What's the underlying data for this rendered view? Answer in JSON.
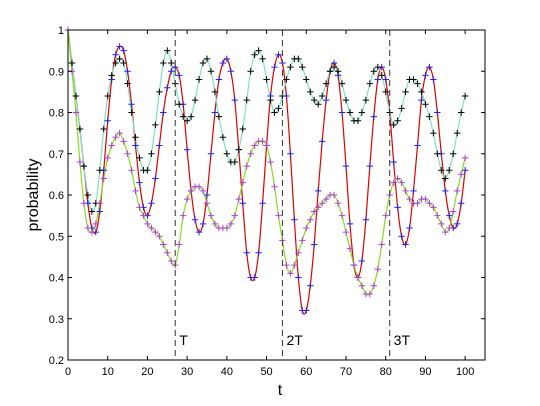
{
  "chart_data": {
    "type": "line",
    "xlabel": "t",
    "ylabel": "probability",
    "xlim": [
      0,
      105
    ],
    "ylim": [
      0.2,
      1.0
    ],
    "x_ticks": [
      0,
      10,
      20,
      30,
      40,
      50,
      60,
      70,
      80,
      90,
      100
    ],
    "y_ticks": [
      0.2,
      0.3,
      0.4,
      0.5,
      0.6,
      0.7,
      0.8,
      0.9,
      1.0
    ],
    "grid": false,
    "legend": "none",
    "vertical_lines": [
      {
        "x": 27,
        "label": "T"
      },
      {
        "x": 54,
        "label": "2T"
      },
      {
        "x": 81,
        "label": "3T"
      }
    ],
    "series": [
      {
        "line_color": "#e00000",
        "marker_color": "#2222dd",
        "x": [
          0,
          1,
          2,
          3,
          4,
          5,
          6,
          7,
          8,
          9,
          10,
          11,
          12,
          13,
          14,
          15,
          16,
          17,
          18,
          19,
          20,
          21,
          22,
          23,
          24,
          25,
          26,
          27,
          28,
          29,
          30,
          31,
          32,
          33,
          34,
          35,
          36,
          37,
          38,
          39,
          40,
          41,
          42,
          43,
          44,
          45,
          46,
          47,
          48,
          49,
          50,
          51,
          52,
          53,
          54,
          55,
          56,
          57,
          58,
          59,
          60,
          61,
          62,
          63,
          64,
          65,
          66,
          67,
          68,
          69,
          70,
          71,
          72,
          73,
          74,
          75,
          76,
          77,
          78,
          79,
          80,
          81,
          82,
          83,
          84,
          85,
          86,
          87,
          88,
          89,
          90,
          91,
          92,
          93,
          94,
          95,
          96,
          97,
          98,
          99,
          100
        ],
        "y": [
          1.0,
          0.92,
          0.84,
          0.76,
          0.67,
          0.58,
          0.52,
          0.51,
          0.56,
          0.66,
          0.78,
          0.88,
          0.94,
          0.96,
          0.95,
          0.9,
          0.82,
          0.72,
          0.63,
          0.57,
          0.55,
          0.58,
          0.64,
          0.72,
          0.8,
          0.86,
          0.9,
          0.91,
          0.89,
          0.82,
          0.71,
          0.61,
          0.54,
          0.51,
          0.53,
          0.6,
          0.7,
          0.8,
          0.88,
          0.92,
          0.93,
          0.9,
          0.83,
          0.71,
          0.58,
          0.46,
          0.4,
          0.4,
          0.46,
          0.58,
          0.72,
          0.84,
          0.91,
          0.94,
          0.92,
          0.84,
          0.7,
          0.54,
          0.4,
          0.32,
          0.32,
          0.38,
          0.48,
          0.61,
          0.73,
          0.83,
          0.9,
          0.92,
          0.89,
          0.8,
          0.67,
          0.53,
          0.43,
          0.4,
          0.44,
          0.54,
          0.67,
          0.79,
          0.88,
          0.91,
          0.88,
          0.8,
          0.68,
          0.57,
          0.5,
          0.48,
          0.52,
          0.61,
          0.72,
          0.83,
          0.89,
          0.91,
          0.88,
          0.8,
          0.7,
          0.61,
          0.55,
          0.52,
          0.53,
          0.58,
          0.66
        ]
      },
      {
        "line_color": "#7fe0c8",
        "marker_color": "#000000",
        "x": [
          0,
          1,
          2,
          3,
          4,
          5,
          6,
          7,
          8,
          9,
          10,
          11,
          12,
          13,
          14,
          15,
          16,
          17,
          18,
          19,
          20,
          21,
          22,
          23,
          24,
          25,
          26,
          27,
          28,
          29,
          30,
          31,
          32,
          33,
          34,
          35,
          36,
          37,
          38,
          39,
          40,
          41,
          42,
          43,
          44,
          45,
          46,
          47,
          48,
          49,
          50,
          51,
          52,
          53,
          54,
          55,
          56,
          57,
          58,
          59,
          60,
          61,
          62,
          63,
          64,
          65,
          66,
          67,
          68,
          69,
          70,
          71,
          72,
          73,
          74,
          75,
          76,
          77,
          78,
          79,
          80,
          81,
          82,
          83,
          84,
          85,
          86,
          87,
          88,
          89,
          90,
          91,
          92,
          93,
          94,
          95,
          96,
          97,
          98,
          99,
          100
        ],
        "y": [
          1.0,
          0.92,
          0.84,
          0.76,
          0.67,
          0.6,
          0.56,
          0.58,
          0.66,
          0.76,
          0.84,
          0.89,
          0.92,
          0.93,
          0.92,
          0.87,
          0.8,
          0.74,
          0.69,
          0.66,
          0.66,
          0.7,
          0.77,
          0.85,
          0.92,
          0.95,
          0.92,
          0.87,
          0.82,
          0.79,
          0.78,
          0.79,
          0.83,
          0.88,
          0.92,
          0.93,
          0.9,
          0.85,
          0.79,
          0.74,
          0.7,
          0.68,
          0.68,
          0.71,
          0.76,
          0.83,
          0.9,
          0.94,
          0.95,
          0.93,
          0.88,
          0.83,
          0.8,
          0.81,
          0.84,
          0.88,
          0.91,
          0.93,
          0.93,
          0.91,
          0.88,
          0.85,
          0.83,
          0.82,
          0.84,
          0.87,
          0.9,
          0.91,
          0.9,
          0.87,
          0.83,
          0.8,
          0.78,
          0.78,
          0.8,
          0.83,
          0.87,
          0.9,
          0.91,
          0.89,
          0.85,
          0.8,
          0.77,
          0.78,
          0.81,
          0.85,
          0.88,
          0.88,
          0.87,
          0.85,
          0.82,
          0.79,
          0.75,
          0.7,
          0.66,
          0.64,
          0.66,
          0.7,
          0.75,
          0.8,
          0.84
        ]
      },
      {
        "line_color": "#88dd22",
        "marker_color": "#b040d0",
        "x": [
          0,
          1,
          2,
          3,
          4,
          5,
          6,
          7,
          8,
          9,
          10,
          11,
          12,
          13,
          14,
          15,
          16,
          17,
          18,
          19,
          20,
          21,
          22,
          23,
          24,
          25,
          26,
          27,
          28,
          29,
          30,
          31,
          32,
          33,
          34,
          35,
          36,
          37,
          38,
          39,
          40,
          41,
          42,
          43,
          44,
          45,
          46,
          47,
          48,
          49,
          50,
          51,
          52,
          53,
          54,
          55,
          56,
          57,
          58,
          59,
          60,
          61,
          62,
          63,
          64,
          65,
          66,
          67,
          68,
          69,
          70,
          71,
          72,
          73,
          74,
          75,
          76,
          77,
          78,
          79,
          80,
          81,
          82,
          83,
          84,
          85,
          86,
          87,
          88,
          89,
          90,
          91,
          92,
          93,
          94,
          95,
          96,
          97,
          98,
          99,
          100
        ],
        "y": [
          1.0,
          0.9,
          0.8,
          0.68,
          0.58,
          0.52,
          0.51,
          0.53,
          0.58,
          0.64,
          0.69,
          0.72,
          0.74,
          0.75,
          0.73,
          0.7,
          0.66,
          0.61,
          0.57,
          0.55,
          0.53,
          0.52,
          0.51,
          0.5,
          0.48,
          0.46,
          0.44,
          0.43,
          0.48,
          0.55,
          0.59,
          0.61,
          0.62,
          0.62,
          0.61,
          0.58,
          0.55,
          0.53,
          0.52,
          0.52,
          0.52,
          0.53,
          0.55,
          0.59,
          0.63,
          0.67,
          0.7,
          0.72,
          0.73,
          0.73,
          0.72,
          0.68,
          0.62,
          0.55,
          0.49,
          0.43,
          0.41,
          0.43,
          0.46,
          0.49,
          0.52,
          0.54,
          0.56,
          0.57,
          0.58,
          0.59,
          0.6,
          0.6,
          0.58,
          0.55,
          0.51,
          0.47,
          0.43,
          0.4,
          0.38,
          0.36,
          0.36,
          0.38,
          0.42,
          0.48,
          0.55,
          0.6,
          0.63,
          0.64,
          0.63,
          0.61,
          0.59,
          0.58,
          0.58,
          0.59,
          0.59,
          0.58,
          0.57,
          0.55,
          0.53,
          0.51,
          0.52,
          0.56,
          0.61,
          0.65,
          0.69
        ]
      }
    ]
  }
}
